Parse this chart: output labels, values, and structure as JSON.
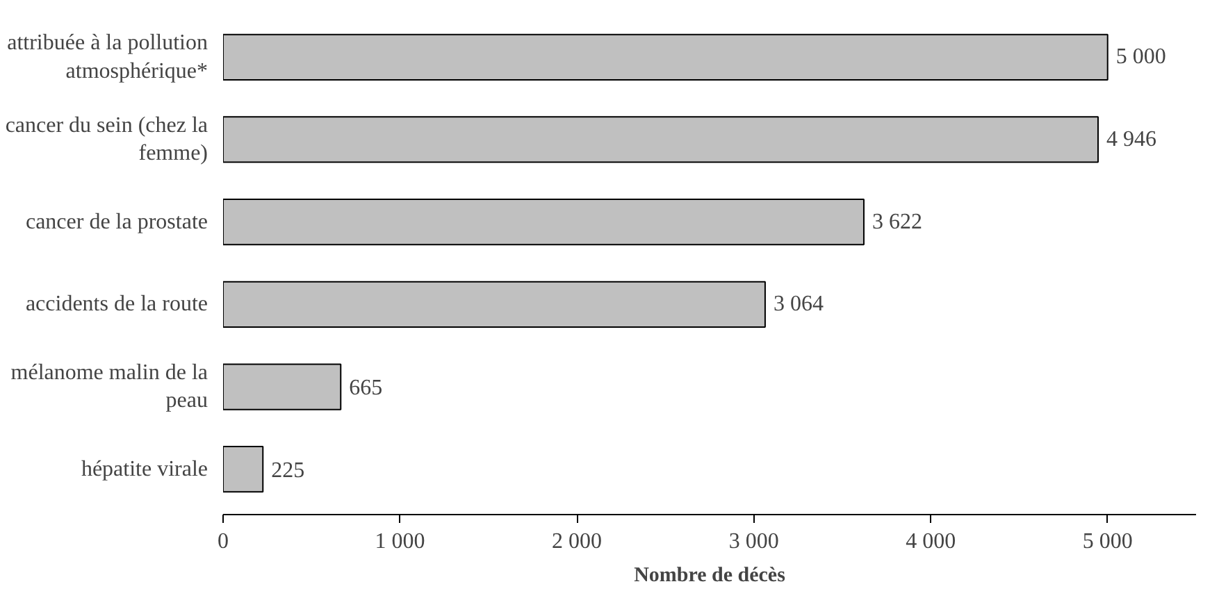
{
  "chart_data": {
    "type": "bar",
    "orientation": "horizontal",
    "xlabel": "Nombre de décès",
    "categories": [
      "attribuée à la pollution atmosphérique*",
      "cancer du sein (chez la femme)",
      "cancer de la prostate",
      "accidents de la route",
      "mélanome malin de la peau",
      "hépatite virale"
    ],
    "values": [
      5000,
      4946,
      3622,
      3064,
      665,
      225
    ],
    "value_labels": [
      "5 000",
      "4 946",
      "3 622",
      "3 064",
      "665",
      "225"
    ],
    "color": "#c0c0c0",
    "xlim": [
      0,
      5500
    ],
    "xticks": [
      0,
      {
        "value": 1000,
        "label": "1 000"
      },
      {
        "value": 2000,
        "label": "2 000"
      },
      {
        "value": 3000,
        "label": "3 000"
      },
      {
        "value": 4000,
        "label": "4 000"
      },
      {
        "value": 5000,
        "label": "5 000"
      }
    ],
    "grid": false
  }
}
